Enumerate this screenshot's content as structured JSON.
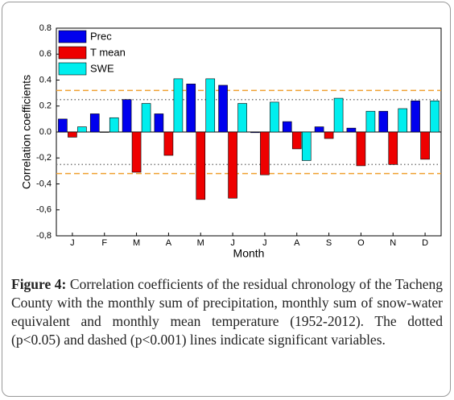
{
  "chart_data": {
    "type": "bar",
    "y_label": "Correlation coefficients",
    "x_label": "Month",
    "categories": [
      "J",
      "F",
      "M",
      "A",
      "M",
      "J",
      "J",
      "A",
      "S",
      "O",
      "N",
      "D"
    ],
    "series": [
      {
        "name": "Prec",
        "color": "#0000ee",
        "values": [
          0.1,
          0.14,
          0.25,
          0.14,
          0.37,
          0.36,
          -0.005,
          0.08,
          0.04,
          0.03,
          0.16,
          0.24
        ]
      },
      {
        "name": "T mean",
        "color": "#ee0000",
        "values": [
          -0.04,
          0.0,
          -0.31,
          -0.18,
          -0.52,
          -0.51,
          -0.33,
          -0.13,
          -0.05,
          -0.26,
          -0.25,
          -0.21
        ]
      },
      {
        "name": "SWE",
        "color": "#00eeee",
        "values": [
          0.04,
          0.11,
          0.22,
          0.41,
          0.41,
          0.22,
          0.23,
          -0.22,
          0.26,
          0.16,
          0.18,
          0.24
        ]
      }
    ],
    "ylim": [
      -0.8,
      0.8
    ],
    "yticks": [
      {
        "value": -0.8,
        "label": "-0,8"
      },
      {
        "value": -0.6,
        "label": "-0,6"
      },
      {
        "value": -0.4,
        "label": "-0,4"
      },
      {
        "value": -0.2,
        "label": "-0,2"
      },
      {
        "value": 0,
        "label": "0.0"
      },
      0.2,
      0.4,
      0.6,
      0.8
    ],
    "reference_lines": [
      {
        "value": 0.25,
        "style": "dotted",
        "color": "#777777"
      },
      {
        "value": -0.25,
        "style": "dotted",
        "color": "#777777"
      },
      {
        "value": 0.32,
        "style": "dashed",
        "color": "#f0a030"
      },
      {
        "value": -0.32,
        "style": "dashed",
        "color": "#f0a030"
      }
    ],
    "legend": "top-left"
  },
  "caption": {
    "label": "Figure 4:",
    "text": "Correlation coefficients of the residual chronology of the Tacheng County with the monthly sum of precipitation, monthly sum of snow-water equivalent and monthly mean temperature (1952-2012). The dotted (p<0.05) and dashed (p<0.001) lines indicate significant variables."
  }
}
